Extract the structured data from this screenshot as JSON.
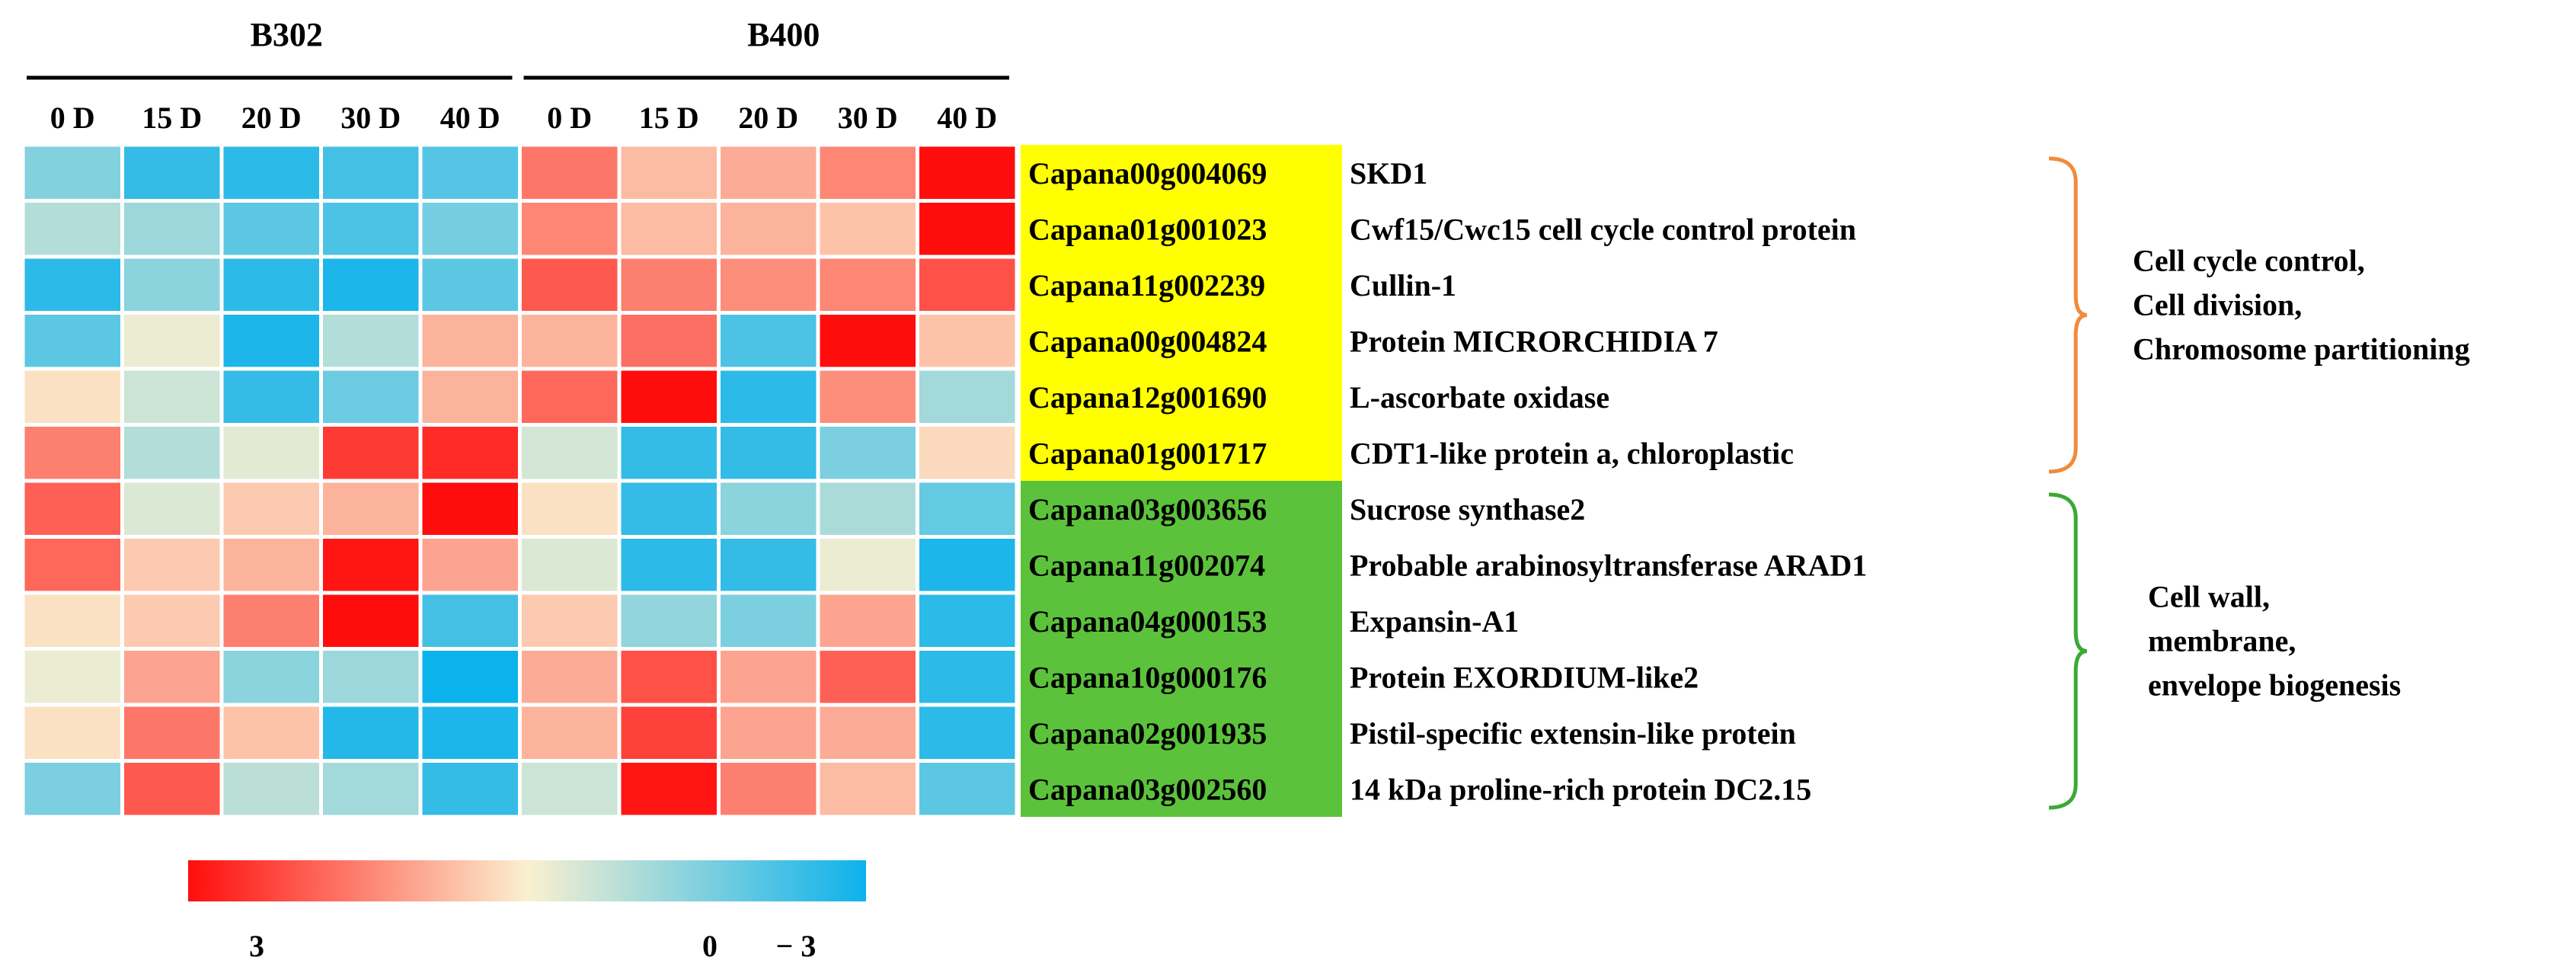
{
  "chart_data": {
    "type": "heatmap",
    "groups": [
      {
        "label": "B302",
        "columns": [
          "0 D",
          "15 D",
          "20 D",
          "30 D",
          "40 D"
        ]
      },
      {
        "label": "B400",
        "columns": [
          "0 D",
          "15 D",
          "20 D",
          "30 D",
          "40 D"
        ]
      }
    ],
    "rows": [
      {
        "gene": "Capana00g004069",
        "annotation": "SKD1",
        "values": [
          -1.5,
          -2.5,
          -2.6,
          -2.3,
          -2.1,
          1.6,
          0.7,
          0.9,
          1.4,
          3.0
        ]
      },
      {
        "gene": "Capana01g001023",
        "annotation": "Cwf15/Cwc15 cell cycle control protein",
        "values": [
          -0.9,
          -1.2,
          -2.0,
          -2.2,
          -1.7,
          1.4,
          0.7,
          0.8,
          0.6,
          3.0
        ]
      },
      {
        "gene": "Capana11g002239",
        "annotation": "Cullin-1",
        "values": [
          -2.6,
          -1.4,
          -2.6,
          -2.8,
          -2.0,
          2.0,
          1.5,
          1.3,
          1.4,
          2.1
        ]
      },
      {
        "gene": "Capana00g004824",
        "annotation": "Protein MICRORCHIDIA 7",
        "values": [
          -2.0,
          -0.2,
          -2.8,
          -0.9,
          0.8,
          0.8,
          1.7,
          -2.2,
          3.0,
          0.6
        ]
      },
      {
        "gene": "Capana12g001690",
        "annotation": "L-ascorbate oxidase",
        "values": [
          0.2,
          -0.6,
          -2.5,
          -1.8,
          0.8,
          1.8,
          3.0,
          -2.6,
          1.3,
          -1.1
        ]
      },
      {
        "gene": "Capana01g001717",
        "annotation": "CDT1-like protein a, chloroplastic",
        "values": [
          1.5,
          -0.9,
          -0.3,
          2.4,
          2.6,
          -0.5,
          -2.5,
          -2.5,
          -1.6,
          0.3
        ]
      },
      {
        "gene": "Capana03g003656",
        "annotation": "Sucrose synthase2",
        "values": [
          1.9,
          -0.4,
          0.5,
          0.8,
          3.0,
          0.2,
          -2.5,
          -1.4,
          -1.0,
          -1.9
        ]
      },
      {
        "gene": "Capana11g002074",
        "annotation": "Probable arabinosyltransferase ARAD1",
        "values": [
          1.8,
          0.5,
          0.8,
          2.9,
          1.0,
          -0.4,
          -2.6,
          -2.5,
          -0.2,
          -2.8
        ]
      },
      {
        "gene": "Capana04g000153",
        "annotation": "Expansin-A1",
        "values": [
          0.2,
          0.5,
          1.5,
          3.0,
          -2.3,
          0.5,
          -1.3,
          -1.6,
          1.0,
          -2.6
        ]
      },
      {
        "gene": "Capana10g000176",
        "annotation": "Protein EXORDIUM-like2",
        "values": [
          -0.2,
          1.0,
          -1.4,
          -1.2,
          -3.0,
          0.9,
          2.1,
          1.0,
          1.9,
          -2.6
        ]
      },
      {
        "gene": "Capana02g001935",
        "annotation": "Pistil-specific extensin-like protein",
        "values": [
          0.2,
          1.6,
          0.6,
          -2.7,
          -2.8,
          0.8,
          2.3,
          1.0,
          0.9,
          -2.6
        ]
      },
      {
        "gene": "Capana03g002560",
        "annotation": "14 kDa proline-rich protein DC2.15",
        "values": [
          -1.6,
          2.0,
          -0.8,
          -1.1,
          -2.5,
          -0.6,
          2.9,
          1.5,
          0.7,
          -2.0
        ]
      }
    ],
    "scale": {
      "min": -3,
      "max": 3,
      "tick_labels": [
        "3",
        "0",
        "− 3"
      ]
    },
    "categories": [
      {
        "label_lines": [
          "Cell cycle control,",
          "Cell division,",
          "Chromosome partitioning"
        ],
        "rows": [
          0,
          5
        ],
        "color": "#f28a3a",
        "gene_highlight": "#ffff00"
      },
      {
        "label_lines": [
          "Cell wall,",
          "membrane,",
          "envelope biogenesis"
        ],
        "rows": [
          6,
          11
        ],
        "color": "#3aaa35",
        "gene_highlight": "#5cc23c"
      }
    ],
    "colors": {
      "high": "#ff0d0d",
      "mid": "#fbf0d0",
      "low": "#0cb2ec"
    }
  }
}
